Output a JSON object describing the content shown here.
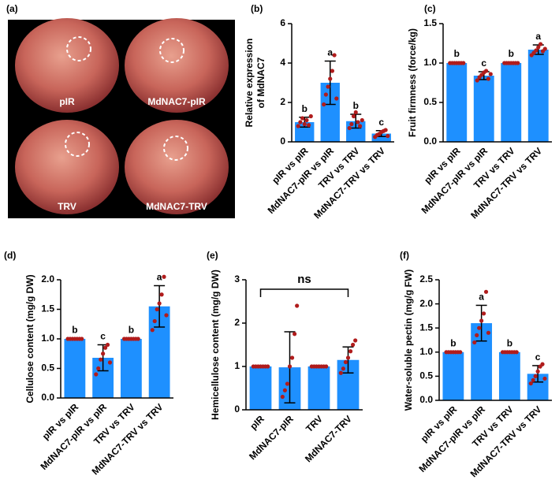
{
  "photo": {
    "label": "(a)",
    "captions": [
      "pIR",
      "MdNAC7-pIR",
      "TRV",
      "MdNAC7-TRV"
    ]
  },
  "chart_data": [
    {
      "type": "bar",
      "panel_label": "(b)",
      "ylabel": [
        "Relative expression",
        "of MdNAC7"
      ],
      "color": "#1e90ff",
      "point_color": "#b01c1c",
      "categories": [
        "pIR vs pIR",
        "MdNAC7-pIR vs pIR",
        "TRV vs TRV",
        "MdNAC7-TRV vs TRV"
      ],
      "values": [
        1,
        3,
        1.05,
        0.42
      ],
      "errors": [
        0.25,
        1.1,
        0.35,
        0.15
      ],
      "points": [
        [
          0.8,
          1.0,
          1.2,
          0.9,
          1.1,
          0.85,
          1.3
        ],
        [
          1.9,
          2.4,
          2.8,
          3.2,
          3.6,
          4.4,
          2.2
        ],
        [
          0.7,
          0.9,
          1.3,
          1.5,
          1.0,
          0.8,
          1.1
        ],
        [
          0.25,
          0.35,
          0.4,
          0.5,
          0.55,
          0.6,
          0.3
        ]
      ],
      "annotations": [
        "b",
        "a",
        "b",
        "c"
      ],
      "ylim": [
        0,
        6
      ],
      "yticks": [
        0,
        2,
        4,
        6
      ]
    },
    {
      "type": "bar",
      "panel_label": "(c)",
      "ylabel": [
        "Fruit firmness (force/kg)"
      ],
      "color": "#1e90ff",
      "point_color": "#b01c1c",
      "categories": [
        "pIR vs pIR",
        "MdNAC7-pIR vs pIR",
        "TRV vs TRV",
        "MdNAC7-TRV vs TRV"
      ],
      "values": [
        1,
        0.84,
        1,
        1.17
      ],
      "errors": [
        0.01,
        0.05,
        0.01,
        0.06
      ],
      "points": [
        [
          1,
          1,
          1,
          1,
          1,
          1,
          1
        ],
        [
          0.78,
          0.82,
          0.85,
          0.88,
          0.9,
          0.8,
          0.86
        ],
        [
          1,
          1,
          1,
          1,
          1,
          1,
          1
        ],
        [
          1.1,
          1.13,
          1.16,
          1.2,
          1.24,
          1.15,
          1.18
        ]
      ],
      "annotations": [
        "b",
        "c",
        "b",
        "a"
      ],
      "ylim": [
        0,
        1.5
      ],
      "yticks": [
        {
          "value": 0,
          "label": "0.0"
        },
        0.5,
        {
          "value": 1,
          "label": "1.0"
        },
        1.5
      ]
    },
    {
      "type": "bar",
      "panel_label": "(d)",
      "ylabel": [
        "Cellulose content (mg/g DW)"
      ],
      "color": "#1e90ff",
      "point_color": "#b01c1c",
      "categories": [
        "pIR vs pIR",
        "MdNAC7-pIR vs pIR",
        "TRV vs TRV",
        "MdNAC7-TRV vs TRV"
      ],
      "values": [
        1,
        0.68,
        1,
        1.55
      ],
      "errors": [
        0.01,
        0.22,
        0.01,
        0.35
      ],
      "points": [
        [
          1,
          1,
          1,
          1,
          1,
          1,
          1
        ],
        [
          0.4,
          0.5,
          0.65,
          0.75,
          0.85,
          0.9,
          0.6
        ],
        [
          1,
          1,
          1,
          1,
          1,
          1,
          1
        ],
        [
          1.15,
          1.3,
          1.5,
          1.6,
          1.75,
          2.05,
          1.4
        ]
      ],
      "annotations": [
        "b",
        "c",
        "b",
        "a"
      ],
      "ylim": [
        0,
        2
      ],
      "yticks": [
        {
          "value": 0,
          "label": "0.0"
        },
        0.5,
        {
          "value": 1,
          "label": "1.0"
        },
        1.5,
        {
          "value": 2,
          "label": "2.0"
        }
      ]
    },
    {
      "type": "bar",
      "panel_label": "(e)",
      "ylabel": [
        "Hemicellulose content (mg/g DW)"
      ],
      "color": "#1e90ff",
      "point_color": "#b01c1c",
      "categories": [
        "pIR",
        "MdNAC7-pIR",
        "TRV",
        "MdNAC7-TRV"
      ],
      "values": [
        1,
        0.98,
        1,
        1.15
      ],
      "errors": [
        0.01,
        0.82,
        0.01,
        0.3
      ],
      "points": [
        [
          1,
          1,
          1,
          1,
          1,
          1,
          1
        ],
        [
          0.3,
          0.45,
          0.6,
          1.0,
          1.2,
          1.75,
          2.4
        ],
        [
          1,
          1,
          1,
          1,
          1,
          1,
          1
        ],
        [
          0.85,
          0.95,
          1.1,
          1.2,
          1.35,
          1.5,
          1.6
        ]
      ],
      "annotations": [
        "ns"
      ],
      "ylim": [
        0,
        3
      ],
      "yticks": [
        0,
        1,
        2,
        3
      ]
    },
    {
      "type": "bar",
      "panel_label": "(f)",
      "ylabel": [
        "Water-soluble pectin (mg/g FW)"
      ],
      "color": "#1e90ff",
      "point_color": "#b01c1c",
      "categories": [
        "pIR vs pIR",
        "MdNAC7-pIR vs pIR",
        "TRV vs TRV",
        "MdNAC7-TRV vs TRV"
      ],
      "values": [
        1,
        1.6,
        1,
        0.55
      ],
      "errors": [
        0.01,
        0.37,
        0.01,
        0.17
      ],
      "points": [
        [
          1,
          1,
          1,
          1,
          1,
          1,
          1
        ],
        [
          1.2,
          1.35,
          1.5,
          1.65,
          1.8,
          2.25,
          1.4
        ],
        [
          1,
          1,
          1,
          1,
          1,
          1,
          1
        ],
        [
          0.35,
          0.42,
          0.5,
          0.6,
          0.7,
          0.75,
          0.45
        ]
      ],
      "annotations": [
        "b",
        "a",
        "b",
        "c"
      ],
      "ylim": [
        0,
        2.5
      ],
      "yticks": [
        {
          "value": 0,
          "label": "0.0"
        },
        0.5,
        {
          "value": 1,
          "label": "1.0"
        },
        1.5,
        {
          "value": 2,
          "label": "2.0"
        },
        2.5
      ]
    }
  ]
}
